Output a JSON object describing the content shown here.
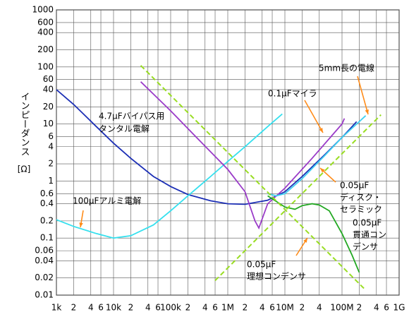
{
  "chart_data": {
    "type": "line",
    "ylabel": "インピーダンス",
    "yunit": "[Ω]",
    "log_x": true,
    "log_y": true,
    "grid": true,
    "xlim": [
      1000,
      1000000000
    ],
    "ylim": [
      0.01,
      1000
    ],
    "xticks": [
      {
        "value": 1000,
        "label": "1k"
      },
      {
        "value": 2000,
        "label": "2"
      },
      {
        "value": 4000,
        "label": "4"
      },
      {
        "value": 6000,
        "label": "6"
      },
      {
        "value": 10000,
        "label": "10k"
      },
      {
        "value": 20000,
        "label": "2"
      },
      {
        "value": 40000,
        "label": "4"
      },
      {
        "value": 60000,
        "label": "6"
      },
      {
        "value": 100000,
        "label": "100k"
      },
      {
        "value": 200000,
        "label": "2"
      },
      {
        "value": 400000,
        "label": "4"
      },
      {
        "value": 600000,
        "label": "6"
      },
      {
        "value": 1000000,
        "label": "1M"
      },
      {
        "value": 2000000,
        "label": "2"
      },
      {
        "value": 4000000,
        "label": "4"
      },
      {
        "value": 6000000,
        "label": "6"
      },
      {
        "value": 10000000,
        "label": "10M"
      },
      {
        "value": 20000000,
        "label": "2"
      },
      {
        "value": 40000000,
        "label": "4"
      },
      {
        "value": 100000000,
        "label": "100M"
      },
      {
        "value": 200000000,
        "label": "2"
      },
      {
        "value": 400000000,
        "label": "4"
      },
      {
        "value": 600000000,
        "label": "6"
      },
      {
        "value": 1000000000,
        "label": "1G"
      }
    ],
    "yticks": [
      1000,
      600,
      400,
      200,
      100,
      60,
      40,
      20,
      10,
      6,
      4,
      2,
      1,
      0.6,
      0.4,
      0.2,
      0.1,
      0.06,
      0.04,
      0.02,
      0.01
    ],
    "series": [
      {
        "label_lines": [
          "4.7μFバイパス用",
          "タンタル電解"
        ],
        "color": "#1c2fb5",
        "dashed": false,
        "x": [
          1000,
          2000,
          5000,
          10000,
          20000,
          50000,
          100000,
          200000,
          500000,
          1000000,
          2000000,
          5000000,
          10000000,
          20000000,
          50000000,
          100000000,
          180000000
        ],
        "values": [
          40,
          22,
          9,
          4.6,
          2.5,
          1.2,
          0.8,
          0.58,
          0.45,
          0.4,
          0.39,
          0.46,
          0.65,
          1.2,
          2.9,
          5.8,
          11
        ]
      },
      {
        "label_lines": [
          "100μFアルミ電解"
        ],
        "color": "#35e0ee",
        "dashed": false,
        "x": [
          1000,
          2000,
          5000,
          10000,
          20000,
          50000,
          100000,
          200000,
          500000,
          1000000,
          2000000,
          5000000,
          9000000
        ],
        "values": [
          0.21,
          0.16,
          0.12,
          0.1,
          0.11,
          0.17,
          0.3,
          0.55,
          1.2,
          2.2,
          4,
          9,
          15
        ]
      },
      {
        "label_lines": [
          "0.1μFマイラ"
        ],
        "color": "#9a3bc8",
        "dashed": false,
        "x": [
          30000,
          100000,
          300000,
          1000000,
          2000000,
          3000000,
          3500000,
          5000000,
          10000000,
          30000000,
          100000000,
          110000000
        ],
        "values": [
          55,
          17,
          5.5,
          1.6,
          0.65,
          0.2,
          0.15,
          0.4,
          0.75,
          2.5,
          10,
          12.5
        ]
      },
      {
        "label_lines": [
          "0.05μF",
          "ディスク・",
          "セラミック"
        ],
        "color": "#40d0f0",
        "dashed": false,
        "x": [
          5000000,
          7000000,
          10000000,
          20000000,
          50000000,
          100000000,
          200000000,
          260000000
        ],
        "values": [
          0.6,
          0.55,
          0.6,
          1.1,
          2.8,
          5.8,
          11,
          14
        ]
      },
      {
        "label_lines": [
          "0.05μF",
          "貫通コン",
          "デンサ"
        ],
        "color": "#22a822",
        "dashed": false,
        "x": [
          5000000,
          10000000,
          15000000,
          20000000,
          30000000,
          40000000,
          60000000,
          100000000,
          150000000,
          200000000
        ],
        "values": [
          0.55,
          0.35,
          0.32,
          0.37,
          0.4,
          0.38,
          0.3,
          0.12,
          0.05,
          0.025
        ]
      },
      {
        "label_lines": [
          "0.05μF",
          "理想コンデンサ"
        ],
        "color": "#99dd22",
        "dashed": true,
        "x": [
          30000,
          250000000
        ],
        "values": [
          106,
          0.0127
        ]
      },
      {
        "label_lines": [
          "5mm長の電線"
        ],
        "color": "#99dd22",
        "dashed": true,
        "x": [
          600000,
          480000000
        ],
        "values": [
          0.018,
          14.5
        ]
      }
    ]
  }
}
